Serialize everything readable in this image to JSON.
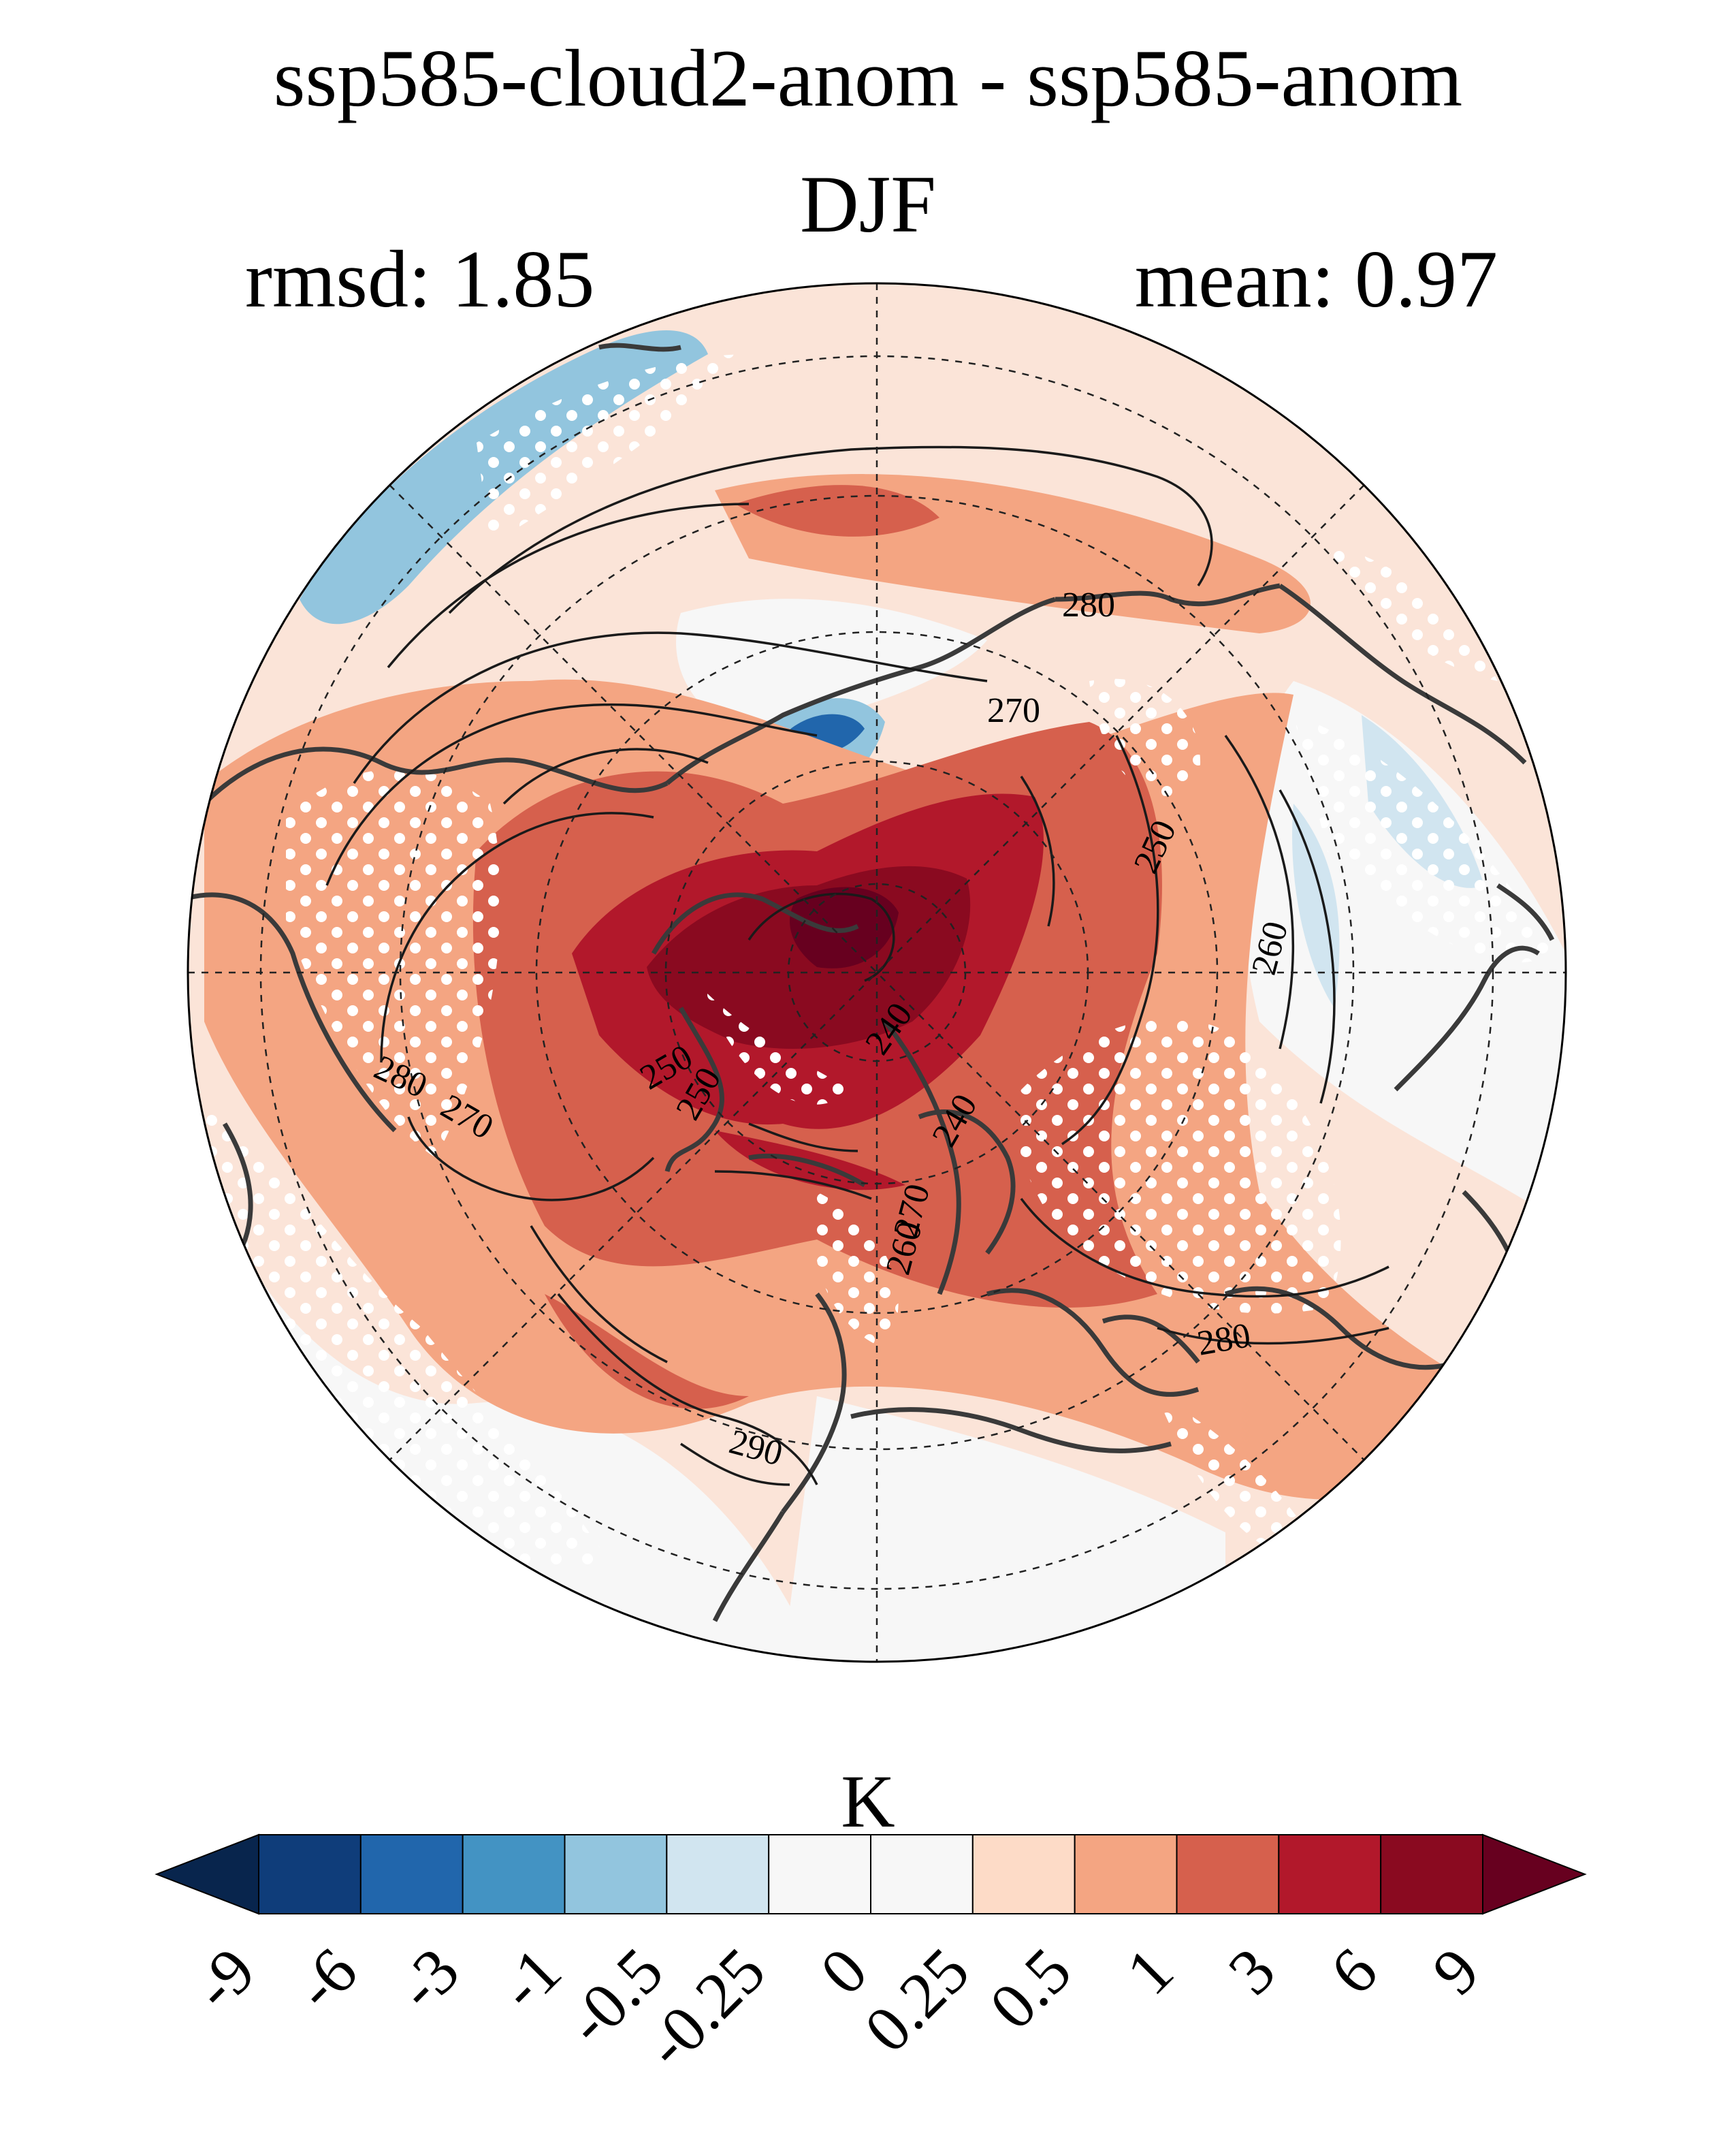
{
  "title": "ssp585-cloud2-anom - ssp585-anom",
  "season": "DJF",
  "stats": {
    "rmsd": "rmsd: 1.85",
    "mean": "mean: 0.97"
  },
  "map": {
    "projection": "north-polar-stereographic",
    "stippling": "white-dots",
    "contour_labels": [
      "280",
      "270",
      "250",
      "260",
      "240",
      "280",
      "270",
      "250",
      "240",
      "250",
      "260",
      "270",
      "280",
      "290"
    ]
  },
  "colorbar": {
    "unit": "K",
    "colors": [
      "#08254d",
      "#0f3d7a",
      "#2166ac",
      "#4393c3",
      "#92c5de",
      "#d1e5f0",
      "#f7f7f7",
      "#f7f7f7",
      "#fddbc7",
      "#f4a582",
      "#d6604d",
      "#b2182b",
      "#8a0a20",
      "#67001f"
    ],
    "tick_labels": [
      "-9",
      "-6",
      "-3",
      "-1",
      "-0.5",
      "-0.25",
      "0",
      "0.25",
      "0.5",
      "1",
      "3",
      "6",
      "9"
    ]
  }
}
